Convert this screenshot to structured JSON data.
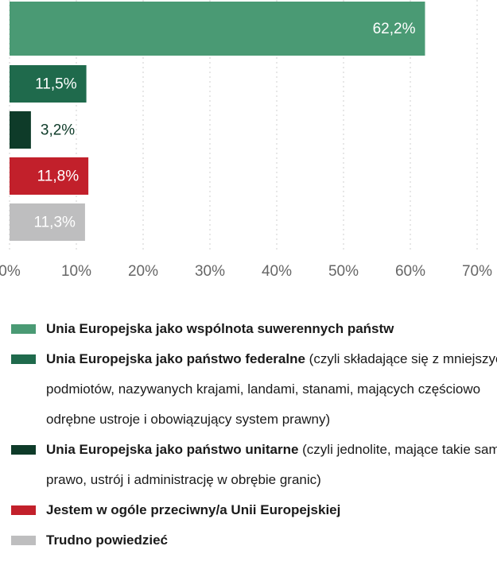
{
  "chart_data": {
    "type": "bar",
    "orientation": "horizontal",
    "categories": [
      "Unia Europejska jako wspólnota suwerennych państw",
      "Unia Europejska jako państwo federalne",
      "Unia Europejska jako państwo unitarne",
      "Jestem w ogóle przeciwny/a Unii Europejskiej",
      "Trudno powiedzieć"
    ],
    "category_notes": [
      null,
      "(czyli składające się z mniejszych podmiotów, nazywanych krajami, landami, stanami, mających częściowo odrębne ustroje i obowiązujący system prawny)",
      "(czyli jednolite, mające takie samo prawo, ustrój i administrację w obrębie granic)",
      null,
      null
    ],
    "values": [
      62.2,
      11.5,
      3.2,
      11.8,
      11.3
    ],
    "value_labels": [
      "62,2%",
      "11,5%",
      "3,2%",
      "11,8%",
      "11,3%"
    ],
    "colors": [
      "#4a9a74",
      "#1f6a4c",
      "#0e3b29",
      "#c2202b",
      "#bebebf"
    ],
    "xlim": [
      0,
      70
    ],
    "xticks": [
      {
        "value": 0,
        "label": "0%"
      },
      {
        "value": 10,
        "label": "10%"
      },
      {
        "value": 20,
        "label": "20%"
      },
      {
        "value": 30,
        "label": "30%"
      },
      {
        "value": 40,
        "label": "40%"
      },
      {
        "value": 50,
        "label": "50%"
      },
      {
        "value": 60,
        "label": "60%"
      },
      {
        "value": 70,
        "label": "70%"
      }
    ],
    "grid": true
  }
}
